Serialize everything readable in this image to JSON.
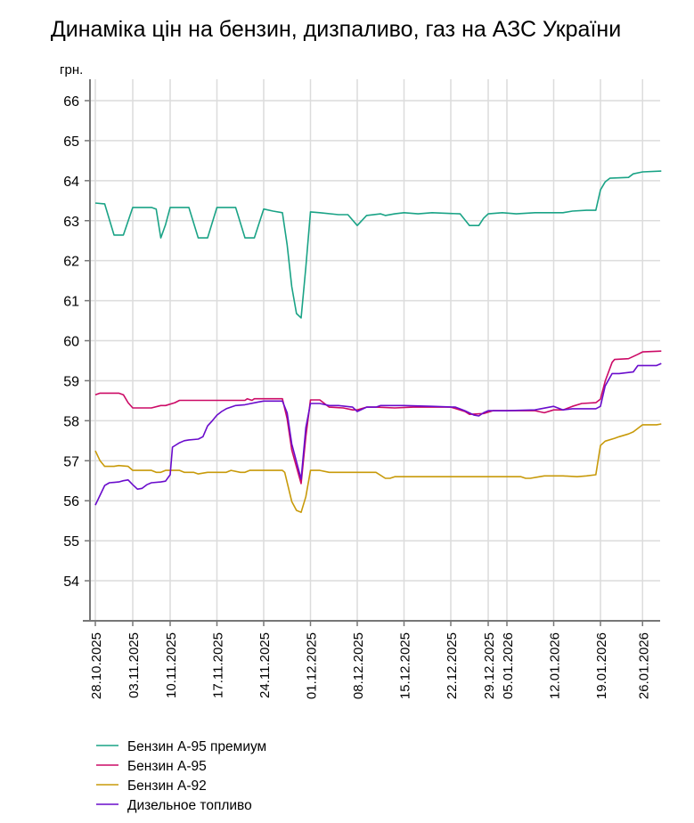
{
  "chart_data": {
    "type": "line",
    "title": "Динаміка цін на бензин, дизпаливо, газ на АЗС України",
    "ylabel": "грн.",
    "xlabel": "",
    "ylim": [
      53,
      66.5
    ],
    "yticks": [
      54,
      55,
      56,
      57,
      58,
      59,
      60,
      61,
      62,
      63,
      64,
      65,
      66
    ],
    "xlim": [
      -1,
      121
    ],
    "x_unit": "observation index",
    "xticks": [
      {
        "x": 0,
        "label": "28.10.2025"
      },
      {
        "x": 8,
        "label": "03.11.2025"
      },
      {
        "x": 16,
        "label": "10.11.2025"
      },
      {
        "x": 26,
        "label": "17.11.2025"
      },
      {
        "x": 36,
        "label": "24.11.2025"
      },
      {
        "x": 46,
        "label": "01.12.2025"
      },
      {
        "x": 56,
        "label": "08.12.2025"
      },
      {
        "x": 66,
        "label": "15.12.2025"
      },
      {
        "x": 76,
        "label": "22.12.2025"
      },
      {
        "x": 84,
        "label": "29.12.2025"
      },
      {
        "x": 88,
        "label": "05.01.2026"
      },
      {
        "x": 98,
        "label": "12.01.2026"
      },
      {
        "x": 108,
        "label": "19.01.2026"
      },
      {
        "x": 117,
        "label": "26.01.2026"
      }
    ],
    "grid": true,
    "legend_position": "bottom-left",
    "series": [
      {
        "name": "Бензин А-95 премиум",
        "color": "#1aa386",
        "points": [
          [
            0,
            63.44
          ],
          [
            2,
            63.42
          ],
          [
            4,
            62.64
          ],
          [
            6,
            62.64
          ],
          [
            8,
            63.33
          ],
          [
            12,
            63.33
          ],
          [
            13,
            63.29
          ],
          [
            14,
            62.57
          ],
          [
            15,
            62.9
          ],
          [
            16,
            63.33
          ],
          [
            20,
            63.33
          ],
          [
            22,
            62.57
          ],
          [
            24,
            62.57
          ],
          [
            26,
            63.33
          ],
          [
            30,
            63.33
          ],
          [
            32,
            62.57
          ],
          [
            34,
            62.57
          ],
          [
            36,
            63.29
          ],
          [
            38,
            63.24
          ],
          [
            40,
            63.2
          ],
          [
            41,
            62.4
          ],
          [
            42,
            61.35
          ],
          [
            43,
            60.68
          ],
          [
            44,
            60.57
          ],
          [
            45,
            61.84
          ],
          [
            46,
            63.22
          ],
          [
            48,
            63.2
          ],
          [
            52,
            63.15
          ],
          [
            54,
            63.15
          ],
          [
            56,
            62.88
          ],
          [
            58,
            63.13
          ],
          [
            61,
            63.17
          ],
          [
            62,
            63.13
          ],
          [
            64,
            63.17
          ],
          [
            66,
            63.2
          ],
          [
            69,
            63.17
          ],
          [
            72,
            63.2
          ],
          [
            78,
            63.17
          ],
          [
            80,
            62.88
          ],
          [
            82,
            62.88
          ],
          [
            83,
            63.06
          ],
          [
            84,
            63.17
          ],
          [
            87,
            63.2
          ],
          [
            90,
            63.17
          ],
          [
            94,
            63.2
          ],
          [
            100,
            63.2
          ],
          [
            102,
            63.24
          ],
          [
            105,
            63.26
          ],
          [
            107,
            63.26
          ],
          [
            108,
            63.77
          ],
          [
            109,
            63.97
          ],
          [
            110,
            64.06
          ],
          [
            114,
            64.08
          ],
          [
            115,
            64.17
          ],
          [
            117,
            64.22
          ],
          [
            121,
            64.24
          ]
        ]
      },
      {
        "name": "Бензин А-95",
        "color": "#cc0a66",
        "points": [
          [
            0,
            58.65
          ],
          [
            1,
            58.69
          ],
          [
            5,
            58.69
          ],
          [
            6,
            58.65
          ],
          [
            7,
            58.45
          ],
          [
            8,
            58.32
          ],
          [
            12,
            58.32
          ],
          [
            14,
            58.38
          ],
          [
            15,
            58.38
          ],
          [
            17,
            58.45
          ],
          [
            18,
            58.51
          ],
          [
            32,
            58.51
          ],
          [
            32.5,
            58.55
          ],
          [
            33.5,
            58.51
          ],
          [
            34,
            58.55
          ],
          [
            40,
            58.55
          ],
          [
            41,
            58.05
          ],
          [
            42,
            57.27
          ],
          [
            44,
            56.43
          ],
          [
            45,
            57.6
          ],
          [
            46,
            58.52
          ],
          [
            48,
            58.52
          ],
          [
            50,
            58.34
          ],
          [
            53,
            58.32
          ],
          [
            55,
            58.27
          ],
          [
            56,
            58.27
          ],
          [
            58,
            58.34
          ],
          [
            60,
            58.34
          ],
          [
            64,
            58.32
          ],
          [
            68,
            58.34
          ],
          [
            72,
            58.34
          ],
          [
            76,
            58.34
          ],
          [
            79,
            58.23
          ],
          [
            80,
            58.16
          ],
          [
            83,
            58.18
          ],
          [
            85,
            58.25
          ],
          [
            88,
            58.25
          ],
          [
            94,
            58.25
          ],
          [
            96,
            58.2
          ],
          [
            98,
            58.27
          ],
          [
            100,
            58.27
          ],
          [
            102,
            58.36
          ],
          [
            104,
            58.43
          ],
          [
            107,
            58.45
          ],
          [
            108,
            58.54
          ],
          [
            109,
            58.99
          ],
          [
            110.5,
            59.46
          ],
          [
            111,
            59.53
          ],
          [
            114,
            59.55
          ],
          [
            116,
            59.66
          ],
          [
            117,
            59.72
          ],
          [
            121,
            59.74
          ]
        ]
      },
      {
        "name": "Бензин А-92",
        "color": "#c89a0a",
        "points": [
          [
            0,
            57.25
          ],
          [
            1,
            57.0
          ],
          [
            2,
            56.86
          ],
          [
            4,
            56.86
          ],
          [
            5,
            56.88
          ],
          [
            7,
            56.86
          ],
          [
            8,
            56.76
          ],
          [
            12,
            56.76
          ],
          [
            13,
            56.71
          ],
          [
            14,
            56.71
          ],
          [
            15,
            56.76
          ],
          [
            18,
            56.76
          ],
          [
            19,
            56.71
          ],
          [
            21,
            56.71
          ],
          [
            22,
            56.67
          ],
          [
            24,
            56.71
          ],
          [
            28,
            56.71
          ],
          [
            29,
            56.76
          ],
          [
            31,
            56.71
          ],
          [
            32,
            56.71
          ],
          [
            33,
            56.76
          ],
          [
            40,
            56.76
          ],
          [
            40.5,
            56.71
          ],
          [
            42,
            55.98
          ],
          [
            43,
            55.76
          ],
          [
            44,
            55.71
          ],
          [
            45,
            56.1
          ],
          [
            46,
            56.76
          ],
          [
            48,
            56.76
          ],
          [
            50,
            56.71
          ],
          [
            52,
            56.71
          ],
          [
            60,
            56.71
          ],
          [
            62,
            56.56
          ],
          [
            63,
            56.56
          ],
          [
            64,
            56.6
          ],
          [
            75,
            56.6
          ],
          [
            91,
            56.6
          ],
          [
            92,
            56.56
          ],
          [
            93,
            56.56
          ],
          [
            95,
            56.6
          ],
          [
            96,
            56.62
          ],
          [
            100,
            56.62
          ],
          [
            103,
            56.6
          ],
          [
            105,
            56.62
          ],
          [
            107,
            56.65
          ],
          [
            108,
            57.38
          ],
          [
            109,
            57.49
          ],
          [
            111,
            57.56
          ],
          [
            112,
            57.6
          ],
          [
            114,
            57.67
          ],
          [
            115,
            57.72
          ],
          [
            117,
            57.9
          ],
          [
            120,
            57.9
          ],
          [
            121,
            57.92
          ]
        ]
      },
      {
        "name": "Дизельное топливо",
        "color": "#6a0ccc",
        "points": [
          [
            0,
            55.89
          ],
          [
            2,
            56.38
          ],
          [
            3,
            56.45
          ],
          [
            5,
            56.47
          ],
          [
            6,
            56.5
          ],
          [
            7,
            56.52
          ],
          [
            8,
            56.4
          ],
          [
            9,
            56.29
          ],
          [
            10,
            56.31
          ],
          [
            11,
            56.4
          ],
          [
            12,
            56.45
          ],
          [
            14,
            56.47
          ],
          [
            15,
            56.49
          ],
          [
            16,
            56.65
          ],
          [
            16.5,
            57.34
          ],
          [
            18,
            57.45
          ],
          [
            19,
            57.5
          ],
          [
            20,
            57.52
          ],
          [
            22,
            57.54
          ],
          [
            23,
            57.6
          ],
          [
            24,
            57.87
          ],
          [
            25,
            58.0
          ],
          [
            26,
            58.14
          ],
          [
            27,
            58.23
          ],
          [
            28,
            58.3
          ],
          [
            30,
            58.38
          ],
          [
            32,
            58.4
          ],
          [
            35,
            58.47
          ],
          [
            36,
            58.49
          ],
          [
            40,
            58.49
          ],
          [
            41,
            58.2
          ],
          [
            42,
            57.42
          ],
          [
            44,
            56.54
          ],
          [
            45,
            57.83
          ],
          [
            46,
            58.43
          ],
          [
            48,
            58.43
          ],
          [
            50,
            58.38
          ],
          [
            52,
            58.38
          ],
          [
            55,
            58.34
          ],
          [
            56,
            58.23
          ],
          [
            58,
            58.34
          ],
          [
            60,
            58.34
          ],
          [
            61,
            58.38
          ],
          [
            64,
            58.38
          ],
          [
            66,
            58.38
          ],
          [
            72,
            58.36
          ],
          [
            77,
            58.34
          ],
          [
            79,
            58.25
          ],
          [
            81,
            58.14
          ],
          [
            82,
            58.12
          ],
          [
            83,
            58.2
          ],
          [
            84,
            58.25
          ],
          [
            88,
            58.25
          ],
          [
            94,
            58.27
          ],
          [
            98,
            58.36
          ],
          [
            100,
            58.27
          ],
          [
            102,
            58.3
          ],
          [
            107,
            58.3
          ],
          [
            108,
            58.36
          ],
          [
            109,
            58.87
          ],
          [
            110.5,
            59.18
          ],
          [
            112,
            59.18
          ],
          [
            115,
            59.22
          ],
          [
            116,
            59.38
          ],
          [
            117,
            59.38
          ],
          [
            120,
            59.38
          ],
          [
            121,
            59.43
          ]
        ]
      }
    ]
  }
}
